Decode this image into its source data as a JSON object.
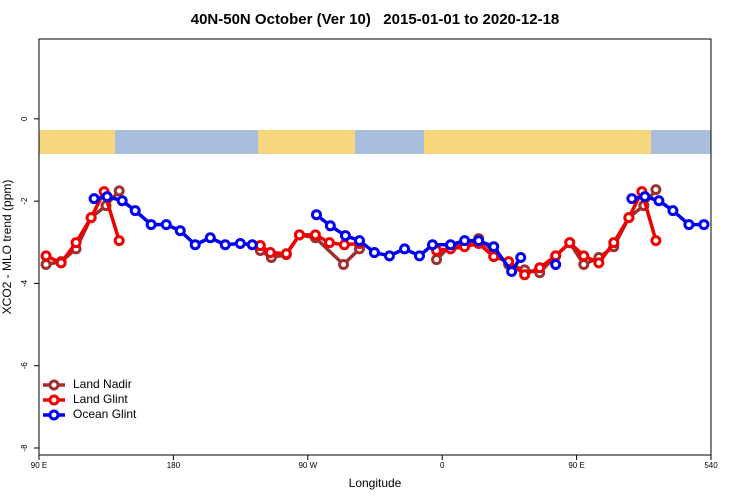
{
  "chart_data": {
    "type": "line",
    "title": "40N-50N October (Ver 10)   2015-01-01 to 2020-12-18",
    "x_label": "Longitude",
    "y_label": "XCO2 - MLO trend (ppm)",
    "xlim": [
      90,
      540
    ],
    "xticks": [
      {
        "value": 90,
        "label": "90 E"
      },
      180,
      {
        "value": 270,
        "label": "90 W"
      },
      {
        "value": 360,
        "label": "0"
      },
      {
        "value": 450,
        "label": "90 E"
      },
      540
    ],
    "ylim": [
      -8.17,
      1.94
    ],
    "yticks": [
      0,
      -2,
      -4,
      -6,
      -8
    ],
    "legend_position": "bottom-left",
    "series": [
      {
        "name": "Land Nadir",
        "color": "#a03030",
        "x": [
          94.7,
          104.8,
          114.8,
          124.9,
          134.9,
          143.7,
          null,
          238.2,
          245.6,
          255.6,
          264.4,
          275.1,
          293.9,
          304.6,
          null,
          356.2,
          365.6,
          375.0,
          384.4,
          394.5,
          404.5,
          415.2,
          425.3,
          436.0,
          445.4,
          454.8,
          464.9,
          474.9,
          485.0,
          495.0,
          503.1
        ],
        "values": [
          -3.54,
          -3.47,
          -3.16,
          -2.4,
          -2.11,
          -1.75,
          null,
          -3.2,
          -3.37,
          -3.3,
          -2.82,
          -2.89,
          -3.54,
          -3.16,
          null,
          -3.42,
          -3.08,
          -3.08,
          -2.91,
          -3.23,
          -3.54,
          -3.67,
          -3.74,
          -3.33,
          -3.01,
          -3.54,
          -3.37,
          -3.11,
          -2.4,
          -2.11,
          -1.72
        ]
      },
      {
        "name": "Land Glint",
        "color": "#ee0000",
        "x": [
          94.7,
          104.8,
          114.8,
          124.9,
          133.6,
          143.7,
          null,
          238.2,
          244.9,
          255.6,
          264.4,
          275.1,
          284.5,
          294.5,
          304.6,
          null,
          356.2,
          365.6,
          375.0,
          384.4,
          394.5,
          404.5,
          415.2,
          425.3,
          436.0,
          445.4,
          454.8,
          464.9,
          474.9,
          485.0,
          493.7,
          503.1
        ],
        "values": [
          -3.33,
          -3.5,
          -3.01,
          -2.4,
          -1.77,
          -2.96,
          null,
          -3.08,
          -3.25,
          -3.28,
          -2.82,
          -2.82,
          -3.01,
          -3.06,
          -3.03,
          null,
          -3.2,
          -3.16,
          -3.11,
          -3.03,
          -3.35,
          -3.47,
          -3.79,
          -3.62,
          -3.33,
          -3.01,
          -3.33,
          -3.5,
          -3.01,
          -2.4,
          -1.77,
          -2.96
        ]
      },
      {
        "name": "Ocean Glint",
        "color": "#0000ee",
        "x": [
          126.9,
          135.6,
          145.7,
          154.4,
          165.1,
          175.2,
          184.6,
          194.6,
          204.7,
          214.7,
          224.8,
          232.8,
          null,
          275.8,
          285.1,
          295.2,
          304.6,
          314.6,
          324.7,
          334.8,
          344.8,
          353.5,
          365.6,
          375.0,
          384.4,
          394.5,
          406.5,
          412.6,
          null,
          436.0,
          null,
          487.0,
          495.7,
          505.1,
          514.5,
          525.2,
          535.3
        ],
        "values": [
          -1.94,
          -1.89,
          -1.99,
          -2.23,
          -2.57,
          -2.57,
          -2.72,
          -3.06,
          -2.89,
          -3.06,
          -3.03,
          -3.06,
          null,
          -2.33,
          -2.6,
          -2.84,
          -2.96,
          -3.25,
          -3.33,
          -3.16,
          -3.33,
          -3.06,
          -3.06,
          -2.96,
          -2.96,
          -3.11,
          -3.71,
          -3.37,
          null,
          -3.54,
          null,
          -1.94,
          -1.89,
          -1.99,
          -2.23,
          -2.57,
          -2.57
        ]
      }
    ]
  }
}
